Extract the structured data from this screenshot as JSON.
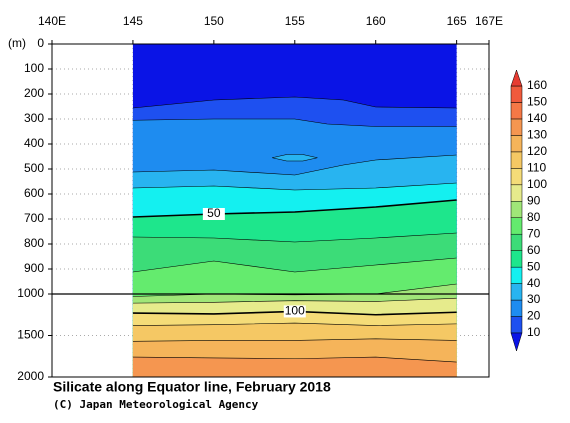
{
  "chart_data": {
    "type": "contour",
    "title": "Silicate along Equator line, February 2018",
    "subtitle": "(C) Japan Meteorological Agency",
    "y_label": "(m)",
    "xlim": [
      140,
      167
    ],
    "xticks": [
      {
        "value": 140,
        "label": "140E"
      },
      145,
      150,
      155,
      160,
      165,
      {
        "value": 167,
        "label": "167E"
      }
    ],
    "ylim": [
      0,
      2000
    ],
    "yticks": [
      0,
      100,
      200,
      300,
      400,
      500,
      600,
      700,
      800,
      900,
      1000,
      1500,
      2000
    ],
    "grid": true,
    "colorbar": {
      "levels": [
        10,
        20,
        30,
        40,
        50,
        60,
        70,
        80,
        90,
        100,
        110,
        120,
        130,
        140,
        150,
        160
      ],
      "colors": [
        "#0a14e6",
        "#1e50f0",
        "#1e8cf0",
        "#28b4f0",
        "#14f0f0",
        "#1ee68c",
        "#3cdc78",
        "#64eb6e",
        "#a0e678",
        "#e6eb8c",
        "#f5dc78",
        "#f5c864",
        "#f5b45a",
        "#f59650",
        "#f57846",
        "#f05a3c",
        "#e63c32"
      ]
    },
    "contours": [
      {
        "level": 10,
        "lon": [
          145,
          150,
          155,
          158,
          160,
          165
        ],
        "depth": [
          256,
          224,
          212,
          224,
          252,
          256
        ]
      },
      {
        "level": 20,
        "lon": [
          145,
          150,
          155,
          157,
          160,
          165
        ],
        "depth": [
          305,
          300,
          300,
          320,
          330,
          330
        ]
      },
      {
        "level": 30,
        "lon": [
          145,
          150,
          155,
          158,
          160,
          165
        ],
        "depth": [
          512,
          504,
          524,
          484,
          464,
          444
        ]
      },
      {
        "level": 40,
        "lon": [
          145,
          150,
          155,
          160,
          165
        ],
        "depth": [
          576,
          568,
          584,
          576,
          556
        ]
      },
      {
        "level": 50,
        "lon": [
          145,
          150,
          155,
          160,
          165
        ],
        "depth": [
          692,
          680,
          672,
          652,
          624
        ],
        "bold": true,
        "labeled": true
      },
      {
        "level": 60,
        "lon": [
          145,
          150,
          155,
          160,
          165
        ],
        "depth": [
          772,
          776,
          792,
          776,
          756
        ]
      },
      {
        "level": 70,
        "lon": [
          145,
          150,
          155,
          160,
          165
        ],
        "depth": [
          912,
          868,
          912,
          884,
          856
        ]
      },
      {
        "level": 80,
        "lon": [
          145,
          150,
          155,
          160,
          165
        ],
        "depth": [
          1030,
          1000,
          1010,
          1000,
          960
        ]
      },
      {
        "level": 90,
        "lon": [
          145,
          150,
          155,
          160,
          165
        ],
        "depth": [
          1110,
          1100,
          1080,
          1090,
          1050
        ]
      },
      {
        "level": 100,
        "lon": [
          145,
          150,
          155,
          160,
          165
        ],
        "depth": [
          1230,
          1240,
          1210,
          1250,
          1220
        ],
        "bold": true,
        "labeled": true
      },
      {
        "level": 110,
        "lon": [
          145,
          150,
          155,
          160,
          165
        ],
        "depth": [
          1380,
          1370,
          1350,
          1380,
          1360
        ]
      },
      {
        "level": 120,
        "lon": [
          145,
          150,
          155,
          160,
          165
        ],
        "depth": [
          1570,
          1560,
          1560,
          1540,
          1560
        ]
      },
      {
        "level": 130,
        "lon": [
          145,
          150,
          155,
          160,
          165
        ],
        "depth": [
          1760,
          1770,
          1780,
          1760,
          1820
        ]
      },
      {
        "level": 30,
        "lon": [
          153.6,
          154.5,
          155.5,
          156.4,
          155.5,
          154.5,
          153.6
        ],
        "depth": [
          455,
          442,
          442,
          455,
          468,
          468,
          455
        ],
        "closed": true
      }
    ]
  }
}
